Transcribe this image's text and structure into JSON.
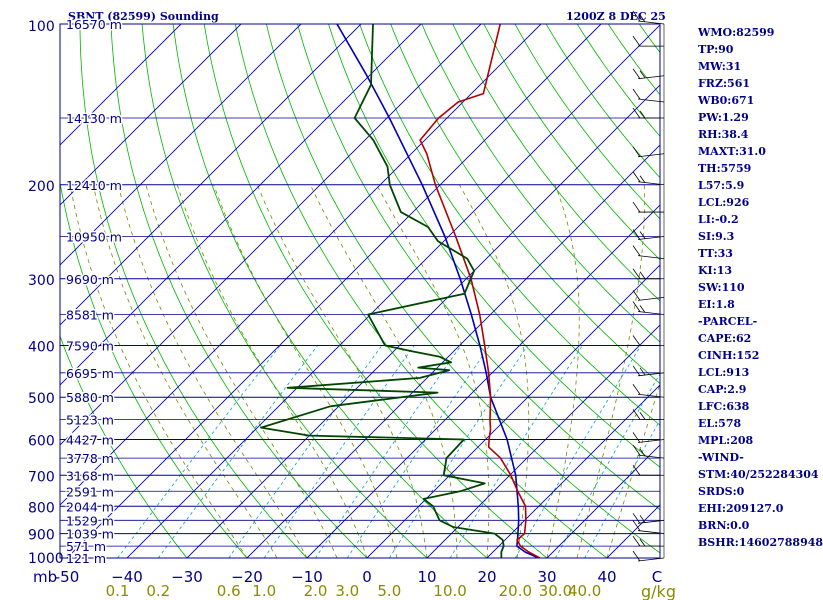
{
  "header": {
    "title_left": "SBNT (82599) Sounding",
    "title_right": "1200Z  8 DEC 25"
  },
  "indices": [
    "WMO:82599",
    "TP:90",
    "MW:31",
    "FRZ:561",
    "WB0:671",
    "PW:1.29",
    "RH:38.4",
    "MAXT:31.0",
    "TH:5759",
    "L57:5.9",
    "LCL:926",
    "LI:-0.2",
    "SI:9.3",
    "TT:33",
    "KI:13",
    "SW:110",
    "EI:1.8",
    "-PARCEL-",
    "CAPE:62",
    "CINH:152",
    "LCL:913",
    "CAP:2.9",
    "LFC:638",
    "EL:578",
    "MPL:208",
    "-WIND-",
    "STM:40/252284304",
    "SRDS:0",
    "EHI:209127.0",
    "BRN:0.0",
    "BSHR:14602788948"
  ],
  "colors": {
    "isobar": "#00008b",
    "isotherm": "#0000cd",
    "dry_adiabat": "#00b400",
    "moist_adiabat": "#6e8c00",
    "mixing_ratio": "#00a0c8",
    "temperature": "#b40000",
    "dewpoint": "#004600",
    "parcel": "#0000b4",
    "mixing_label": "#8b8b00",
    "text": "#00008b"
  },
  "chart_data": {
    "type": "line",
    "chart_kind": "skew-T log-P sounding",
    "x_axis": {
      "unit": "C",
      "prefix": "mb",
      "range": [
        -50,
        50
      ],
      "ticks": [
        -50,
        -40,
        -30,
        -20,
        -10,
        0,
        10,
        20,
        30,
        40
      ],
      "tick_labels": [
        "-50",
        "−40",
        "−30",
        "−20",
        "−10",
        "0",
        "10",
        "20",
        "30",
        "40"
      ],
      "unit_label": "C"
    },
    "y_axis": {
      "scale": "log",
      "range_mb": [
        1000,
        100
      ],
      "pressure_labels": [
        "100",
        "200",
        "300",
        "400",
        "500",
        "600",
        "700",
        "800",
        "900",
        "1000"
      ],
      "pressure_values": [
        100,
        200,
        300,
        400,
        500,
        600,
        700,
        800,
        900,
        1000
      ]
    },
    "height_labels": [
      {
        "p": 100,
        "label": "16570 m"
      },
      {
        "p": 150,
        "label": "14130 m"
      },
      {
        "p": 200,
        "label": "12410 m"
      },
      {
        "p": 250,
        "label": "10950 m"
      },
      {
        "p": 300,
        "label": "9690 m"
      },
      {
        "p": 350,
        "label": "8581 m"
      },
      {
        "p": 400,
        "label": "7590 m"
      },
      {
        "p": 450,
        "label": "6695 m"
      },
      {
        "p": 500,
        "label": "5880 m"
      },
      {
        "p": 550,
        "label": "5123 m"
      },
      {
        "p": 600,
        "label": "4427 m"
      },
      {
        "p": 650,
        "label": "3778 m"
      },
      {
        "p": 700,
        "label": "3168 m"
      },
      {
        "p": 750,
        "label": "2591 m"
      },
      {
        "p": 800,
        "label": "2044 m"
      },
      {
        "p": 850,
        "label": "1529 m"
      },
      {
        "p": 900,
        "label": "1039 m"
      },
      {
        "p": 950,
        "label": "571 m"
      },
      {
        "p": 1000,
        "label": "121 m"
      }
    ],
    "mixing_ratio_labels": [
      "0.1",
      "0.2",
      "0.6",
      "1.0",
      "2.0",
      "3.0",
      "5.0",
      "10.0",
      "20.0",
      "30.0",
      "40.0"
    ],
    "mixing_ratio_values": [
      0.1,
      0.2,
      0.6,
      1.0,
      2.0,
      3.0,
      5.0,
      10.0,
      20.0,
      30.0,
      40.0
    ],
    "mixing_unit": "g/kg",
    "series": [
      {
        "key": "temperature",
        "points": [
          {
            "p": 1000,
            "t": 28.8
          },
          {
            "p": 975,
            "t": 26.0
          },
          {
            "p": 950,
            "t": 23.6
          },
          {
            "p": 925,
            "t": 22.0
          },
          {
            "p": 900,
            "t": 22.2
          },
          {
            "p": 875,
            "t": 21.2
          },
          {
            "p": 850,
            "t": 20.2
          },
          {
            "p": 800,
            "t": 17.8
          },
          {
            "p": 750,
            "t": 14.0
          },
          {
            "p": 700,
            "t": 10.2
          },
          {
            "p": 650,
            "t": 5.6
          },
          {
            "p": 620,
            "t": 1.8
          },
          {
            "p": 600,
            "t": 0.6
          },
          {
            "p": 575,
            "t": -0.8
          },
          {
            "p": 550,
            "t": -2.6
          },
          {
            "p": 500,
            "t": -6.2
          },
          {
            "p": 450,
            "t": -10.6
          },
          {
            "p": 400,
            "t": -15.8
          },
          {
            "p": 350,
            "t": -21.8
          },
          {
            "p": 300,
            "t": -29.2
          },
          {
            "p": 250,
            "t": -38.8
          },
          {
            "p": 200,
            "t": -50.8
          },
          {
            "p": 175,
            "t": -57.4
          },
          {
            "p": 165,
            "t": -60.8
          },
          {
            "p": 150,
            "t": -61.4
          },
          {
            "p": 140,
            "t": -60.8
          },
          {
            "p": 135,
            "t": -58.0
          },
          {
            "p": 100,
            "t": -66.8
          }
        ]
      },
      {
        "key": "dewpoint",
        "points": [
          {
            "p": 1000,
            "td": 22.4
          },
          {
            "p": 975,
            "td": 21.4
          },
          {
            "p": 950,
            "td": 20.8
          },
          {
            "p": 925,
            "td": 19.6
          },
          {
            "p": 900,
            "td": 17.2
          },
          {
            "p": 875,
            "td": 9.2
          },
          {
            "p": 850,
            "td": 5.8
          },
          {
            "p": 800,
            "td": 2.4
          },
          {
            "p": 775,
            "td": -0.4
          },
          {
            "p": 750,
            "td": 4.4
          },
          {
            "p": 725,
            "td": 7.2
          },
          {
            "p": 700,
            "td": -1.0
          },
          {
            "p": 650,
            "td": -3.4
          },
          {
            "p": 600,
            "td": -3.6
          },
          {
            "p": 590,
            "td": -30.0
          },
          {
            "p": 570,
            "td": -39.4
          },
          {
            "p": 520,
            "td": -31.4
          },
          {
            "p": 490,
            "td": -15.8
          },
          {
            "p": 480,
            "td": -41.6
          },
          {
            "p": 460,
            "td": -21.2
          },
          {
            "p": 445,
            "td": -17.6
          },
          {
            "p": 440,
            "td": -23.2
          },
          {
            "p": 430,
            "td": -18.6
          },
          {
            "p": 420,
            "td": -21.4
          },
          {
            "p": 410,
            "td": -27.0
          },
          {
            "p": 400,
            "td": -32.4
          },
          {
            "p": 350,
            "td": -40.4
          },
          {
            "p": 320,
            "td": -27.8
          },
          {
            "p": 290,
            "td": -30.0
          },
          {
            "p": 275,
            "td": -33.2
          },
          {
            "p": 255,
            "td": -41.0
          },
          {
            "p": 240,
            "td": -45.0
          },
          {
            "p": 225,
            "td": -52.0
          },
          {
            "p": 200,
            "td": -58.4
          },
          {
            "p": 185,
            "td": -61.8
          },
          {
            "p": 165,
            "td": -68.6
          },
          {
            "p": 150,
            "td": -75.4
          },
          {
            "p": 130,
            "td": -78.2
          },
          {
            "p": 100,
            "td": -88.0
          }
        ]
      },
      {
        "key": "parcel",
        "points": [
          {
            "p": 1000,
            "t": 28.6
          },
          {
            "p": 975,
            "t": 25.4
          },
          {
            "p": 950,
            "t": 23.0
          },
          {
            "p": 913,
            "t": 21.6
          },
          {
            "p": 850,
            "t": 19.0
          },
          {
            "p": 800,
            "t": 16.6
          },
          {
            "p": 700,
            "t": 11.0
          },
          {
            "p": 600,
            "t": 3.6
          },
          {
            "p": 500,
            "t": -6.2
          },
          {
            "p": 450,
            "t": -11.0
          },
          {
            "p": 400,
            "t": -16.6
          },
          {
            "p": 350,
            "t": -23.2
          },
          {
            "p": 300,
            "t": -31.0
          },
          {
            "p": 250,
            "t": -40.6
          },
          {
            "p": 200,
            "t": -53.0
          },
          {
            "p": 150,
            "t": -69.6
          },
          {
            "p": 125,
            "t": -80.4
          },
          {
            "p": 100,
            "t": -94.0
          }
        ]
      }
    ],
    "wind_barb_levels": [
      100,
      110,
      125,
      140,
      150,
      175,
      200,
      225,
      250,
      275,
      300,
      325,
      350,
      400,
      450,
      500,
      550,
      600,
      650,
      700,
      850,
      900,
      950,
      1000
    ]
  }
}
